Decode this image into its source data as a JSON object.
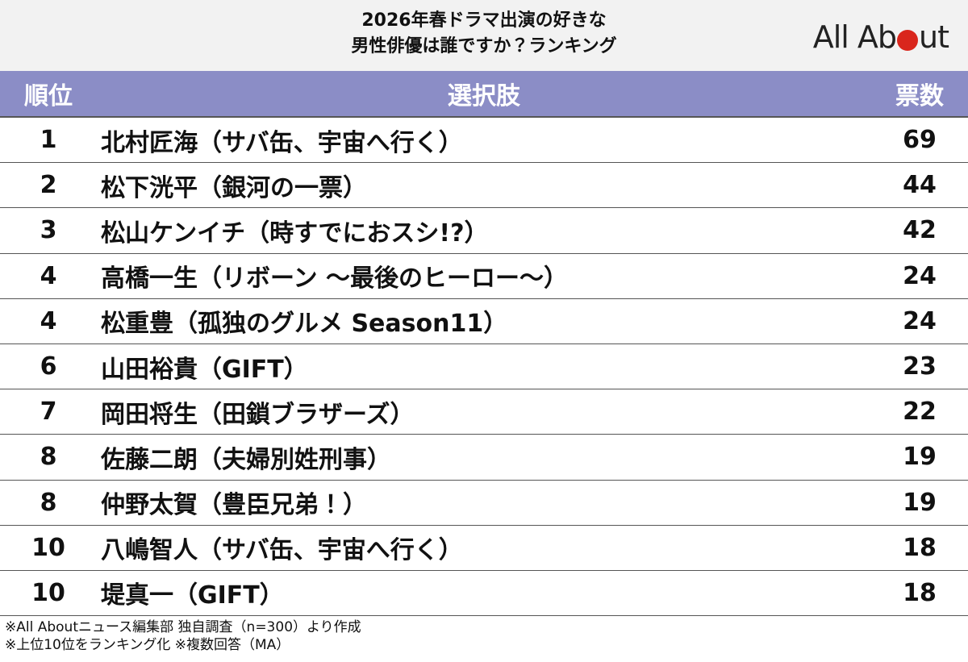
{
  "header": {
    "title": [
      "2026年春ドラマ出演の好きな",
      "男性俳優は誰ですか？ランキング"
    ],
    "logo": [
      "All Ab",
      "ut"
    ]
  },
  "table": {
    "columns": [
      "順位",
      "選択肢",
      "票数"
    ],
    "rows": [
      [
        1,
        "北村匠海（サバ缶、宇宙へ行く）",
        69
      ],
      [
        2,
        "松下洸平（銀河の一票）",
        44
      ],
      [
        3,
        "松山ケンイチ（時すでにおスシ!?）",
        42
      ],
      [
        4,
        "高橋一生（リボーン ～最後のヒーロー～）",
        24
      ],
      [
        4,
        "松重豊（孤独のグルメ Season11）",
        24
      ],
      [
        6,
        "山田裕貴（GIFT）",
        23
      ],
      [
        7,
        "岡田将生（田鎖ブラザーズ）",
        22
      ],
      [
        8,
        "佐藤二朗（夫婦別姓刑事）",
        19
      ],
      [
        8,
        "仲野太賀（豊臣兄弟！）",
        19
      ],
      [
        10,
        "八嶋智人（サバ缶、宇宙へ行く）",
        18
      ],
      [
        10,
        "堤真一（GIFT）",
        18
      ]
    ]
  },
  "footnotes": [
    "※All Aboutニュース編集部 独自調査（n=300）より作成",
    "※上位10位をランキング化 ※複数回答（MA）"
  ]
}
